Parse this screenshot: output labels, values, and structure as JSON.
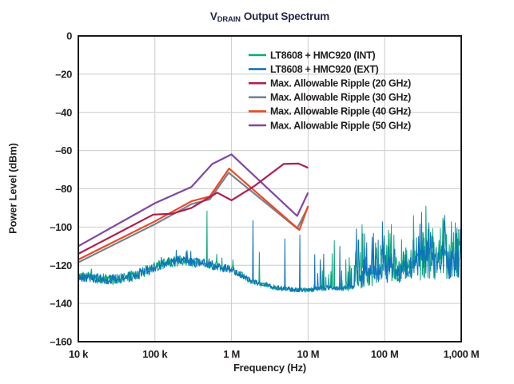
{
  "chart_data": {
    "type": "line",
    "title": {
      "main": "V",
      "sub": "DRAIN",
      "rest": "Output Spectrum"
    },
    "xlabel": "Frequency (Hz)",
    "ylabel": "Power Level (dBm)",
    "x_scale": "log",
    "x_range": [
      10000,
      1000000000
    ],
    "y_range": [
      -160,
      0
    ],
    "grid": true,
    "legend_position": "top-right-inside",
    "colors": {
      "grid": "#c9cbce",
      "axis": "#1a1a1a",
      "text": "#231f20",
      "title": "#232749",
      "background": "#ffffff"
    },
    "x_ticks": [
      {
        "f": 10000,
        "label": "10 k"
      },
      {
        "f": 100000,
        "label": "100 k"
      },
      {
        "f": 1000000,
        "label": "1 M"
      },
      {
        "f": 10000000,
        "label": "10 M"
      },
      {
        "f": 100000000,
        "label": "100 M"
      },
      {
        "f": 1000000000,
        "label": "1,000 M"
      }
    ],
    "y_ticks": [
      {
        "v": 0,
        "label": "0"
      },
      {
        "v": -20,
        "label": "–20"
      },
      {
        "v": -40,
        "label": "–40"
      },
      {
        "v": -60,
        "label": "–60"
      },
      {
        "v": -80,
        "label": "–80"
      },
      {
        "v": -100,
        "label": "–100"
      },
      {
        "v": -120,
        "label": "–120"
      },
      {
        "v": -140,
        "label": "–140"
      },
      {
        "v": -160,
        "label": "–160"
      }
    ],
    "legend": {
      "entries": [
        {
          "label": "LT8608 + HMC920 (INT)",
          "color": "#0ba97b"
        },
        {
          "label": "LT8608 + HMC920 (EXT)",
          "color": "#0f73bd"
        },
        {
          "label": "Max. Allowable Ripple (20 GHz)",
          "color": "#ad1f4d"
        },
        {
          "label": "Max. Allowable Ripple (30 GHz)",
          "color": "#79818f"
        },
        {
          "label": "Max. Allowable Ripple (40 GHz)",
          "color": "#ea4a26"
        },
        {
          "label": "Max. Allowable Ripple (50 GHz)",
          "color": "#7f47a1"
        }
      ]
    },
    "ripple_series": [
      {
        "id": "ripple-30ghz",
        "name": "Max. Allowable Ripple (30 GHz)",
        "color": "#79818f",
        "points": [
          [
            10000,
            -118.5
          ],
          [
            100000,
            -98.5
          ],
          [
            300000,
            -88
          ],
          [
            520000,
            -85.5
          ],
          [
            920000,
            -71.6
          ],
          [
            7200000,
            -100.7
          ],
          [
            10000000,
            -89.5
          ]
        ]
      },
      {
        "id": "ripple-40ghz",
        "name": "Max. Allowable Ripple (40 GHz)",
        "color": "#ea4a26",
        "points": [
          [
            10000,
            -117
          ],
          [
            100000,
            -97
          ],
          [
            300000,
            -86.5
          ],
          [
            520000,
            -84
          ],
          [
            930000,
            -69.4
          ],
          [
            7700000,
            -101.5
          ],
          [
            10000000,
            -89
          ]
        ]
      },
      {
        "id": "ripple-50ghz",
        "name": "Max. Allowable Ripple (50 GHz)",
        "color": "#7f47a1",
        "points": [
          [
            10000,
            -110
          ],
          [
            100000,
            -87.5
          ],
          [
            300000,
            -79
          ],
          [
            560000,
            -67
          ],
          [
            1000000,
            -62
          ],
          [
            7200000,
            -94.2
          ],
          [
            10000000,
            -82
          ]
        ]
      },
      {
        "id": "ripple-20ghz",
        "name": "Max. Allowable Ripple (20 GHz)",
        "color": "#ad1f4d",
        "points": [
          [
            10000,
            -114
          ],
          [
            95000,
            -93.5
          ],
          [
            170000,
            -93
          ],
          [
            300000,
            -90
          ],
          [
            650000,
            -82
          ],
          [
            1000000,
            -86
          ],
          [
            2000000,
            -78.5
          ],
          [
            4800000,
            -67
          ],
          [
            7500000,
            -66.8
          ],
          [
            10000000,
            -69
          ]
        ]
      }
    ],
    "noise_series": [
      {
        "id": "noise-int",
        "name": "LT8608 + HMC920 (INT)",
        "color": "#0ba97b",
        "seed": 7,
        "jitter_scale": 1.15,
        "spikes": [
          [
            480000,
            -91.5
          ],
          [
            750000,
            -116
          ],
          [
            1050000,
            -117
          ],
          [
            2300000,
            -113
          ],
          [
            22000000,
            -107
          ],
          [
            31000000,
            -117
          ]
        ]
      },
      {
        "id": "noise-ext",
        "name": "LT8608 + HMC920 (EXT)",
        "color": "#0f73bd",
        "seed": 13,
        "jitter_scale": 1.0,
        "spikes": [
          [
            190000,
            -112
          ],
          [
            295000,
            -112.5
          ],
          [
            1900000,
            -96.5
          ],
          [
            5000000,
            -106
          ],
          [
            7800000,
            -104
          ],
          [
            16000000,
            -114
          ],
          [
            26000000,
            -110
          ]
        ]
      }
    ],
    "noise_model": {
      "base": [
        [
          10000,
          -126
        ],
        [
          25000,
          -127.5
        ],
        [
          50000,
          -126
        ],
        [
          80000,
          -122.5
        ],
        [
          150000,
          -118.5
        ],
        [
          220000,
          -117.5
        ],
        [
          400000,
          -119
        ],
        [
          700000,
          -121
        ],
        [
          1000000,
          -122
        ],
        [
          1800000,
          -128
        ],
        [
          3500000,
          -131.5
        ],
        [
          7000000,
          -133
        ],
        [
          30000000,
          -132.5
        ],
        [
          60000000,
          -131
        ],
        [
          100000000,
          -129.5
        ],
        [
          200000000,
          -128
        ],
        [
          400000000,
          -127
        ],
        [
          1000000000,
          -126
        ]
      ],
      "jitter": [
        [
          10000,
          2.6
        ],
        [
          150000,
          2.6
        ],
        [
          1000000,
          2.0
        ],
        [
          3000000,
          1.2
        ],
        [
          20000000,
          1.0
        ],
        [
          50000000,
          1.6
        ],
        [
          1000000000,
          1.8
        ]
      ],
      "zones": [
        {
          "f1": 10000,
          "f2": 1200000,
          "mass": 0,
          "density": 0.03,
          "up": 6
        },
        {
          "f1": 12000000,
          "f2": 40000000,
          "mass": 1.5,
          "density": 0.1,
          "up": 20
        },
        {
          "f1": 40000000,
          "f2": 90000000,
          "mass": 11,
          "density": 0.5,
          "up": 22
        },
        {
          "f1": 90000000,
          "f2": 135000000,
          "mass": 15,
          "density": 0.6,
          "up": 25
        },
        {
          "f1": 135000000,
          "f2": 230000000,
          "mass": 9,
          "density": 0.4,
          "up": 16
        },
        {
          "f1": 230000000,
          "f2": 1000000000,
          "mass": 15,
          "density": 0.6,
          "up": 25
        }
      ]
    }
  }
}
